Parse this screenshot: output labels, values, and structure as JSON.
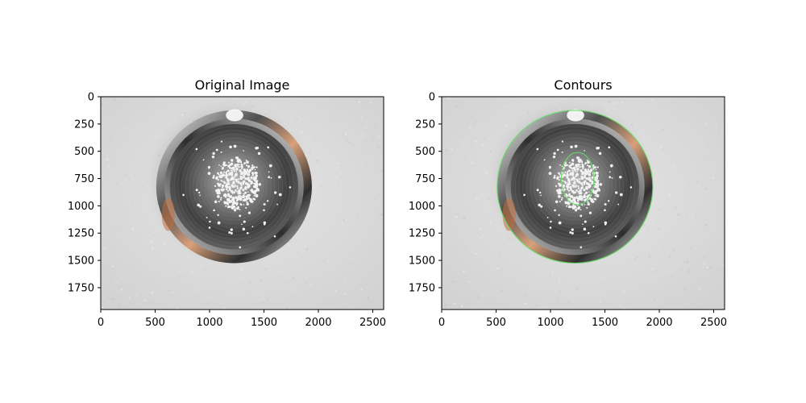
{
  "chart_data": [
    {
      "type": "image",
      "title": "Original Image",
      "xlim": [
        0,
        2600
      ],
      "ylim": [
        1950,
        0
      ],
      "x_ticks": [
        0,
        500,
        1000,
        1500,
        2000,
        2500
      ],
      "y_ticks": [
        0,
        250,
        500,
        750,
        1000,
        1250,
        1500,
        1750
      ],
      "x_tick_labels": [
        "0",
        "500",
        "1000",
        "1500",
        "2000",
        "2500"
      ],
      "y_tick_labels": [
        "0",
        "250",
        "500",
        "750",
        "1000",
        "1250",
        "1500",
        "1750"
      ],
      "content": "photo",
      "contours": []
    },
    {
      "type": "image",
      "title": "Contours",
      "xlim": [
        0,
        2600
      ],
      "ylim": [
        1950,
        0
      ],
      "x_ticks": [
        0,
        500,
        1000,
        1500,
        2000,
        2500
      ],
      "y_ticks": [
        0,
        250,
        500,
        750,
        1000,
        1250,
        1500,
        1750
      ],
      "x_tick_labels": [
        "0",
        "500",
        "1000",
        "1500",
        "2000",
        "2500"
      ],
      "y_tick_labels": [
        "0",
        "250",
        "500",
        "750",
        "1000",
        "1250",
        "1500",
        "1750"
      ],
      "content": "photo",
      "contour_color": "#66dd66",
      "contours": [
        {
          "cx": 1225,
          "cy": 825,
          "rx": 715,
          "ry": 700
        },
        {
          "cx": 1250,
          "cy": 750,
          "rx": 150,
          "ry": 240
        }
      ]
    }
  ],
  "colors": {
    "paper": "#dcdcdc",
    "plate_rim_dark": "#4a4a4a",
    "plate_rim_light": "#f0f0f0",
    "plate_inner": "#6f6f6f",
    "salt": "#f2f2f2",
    "contour": "#66dd66"
  }
}
